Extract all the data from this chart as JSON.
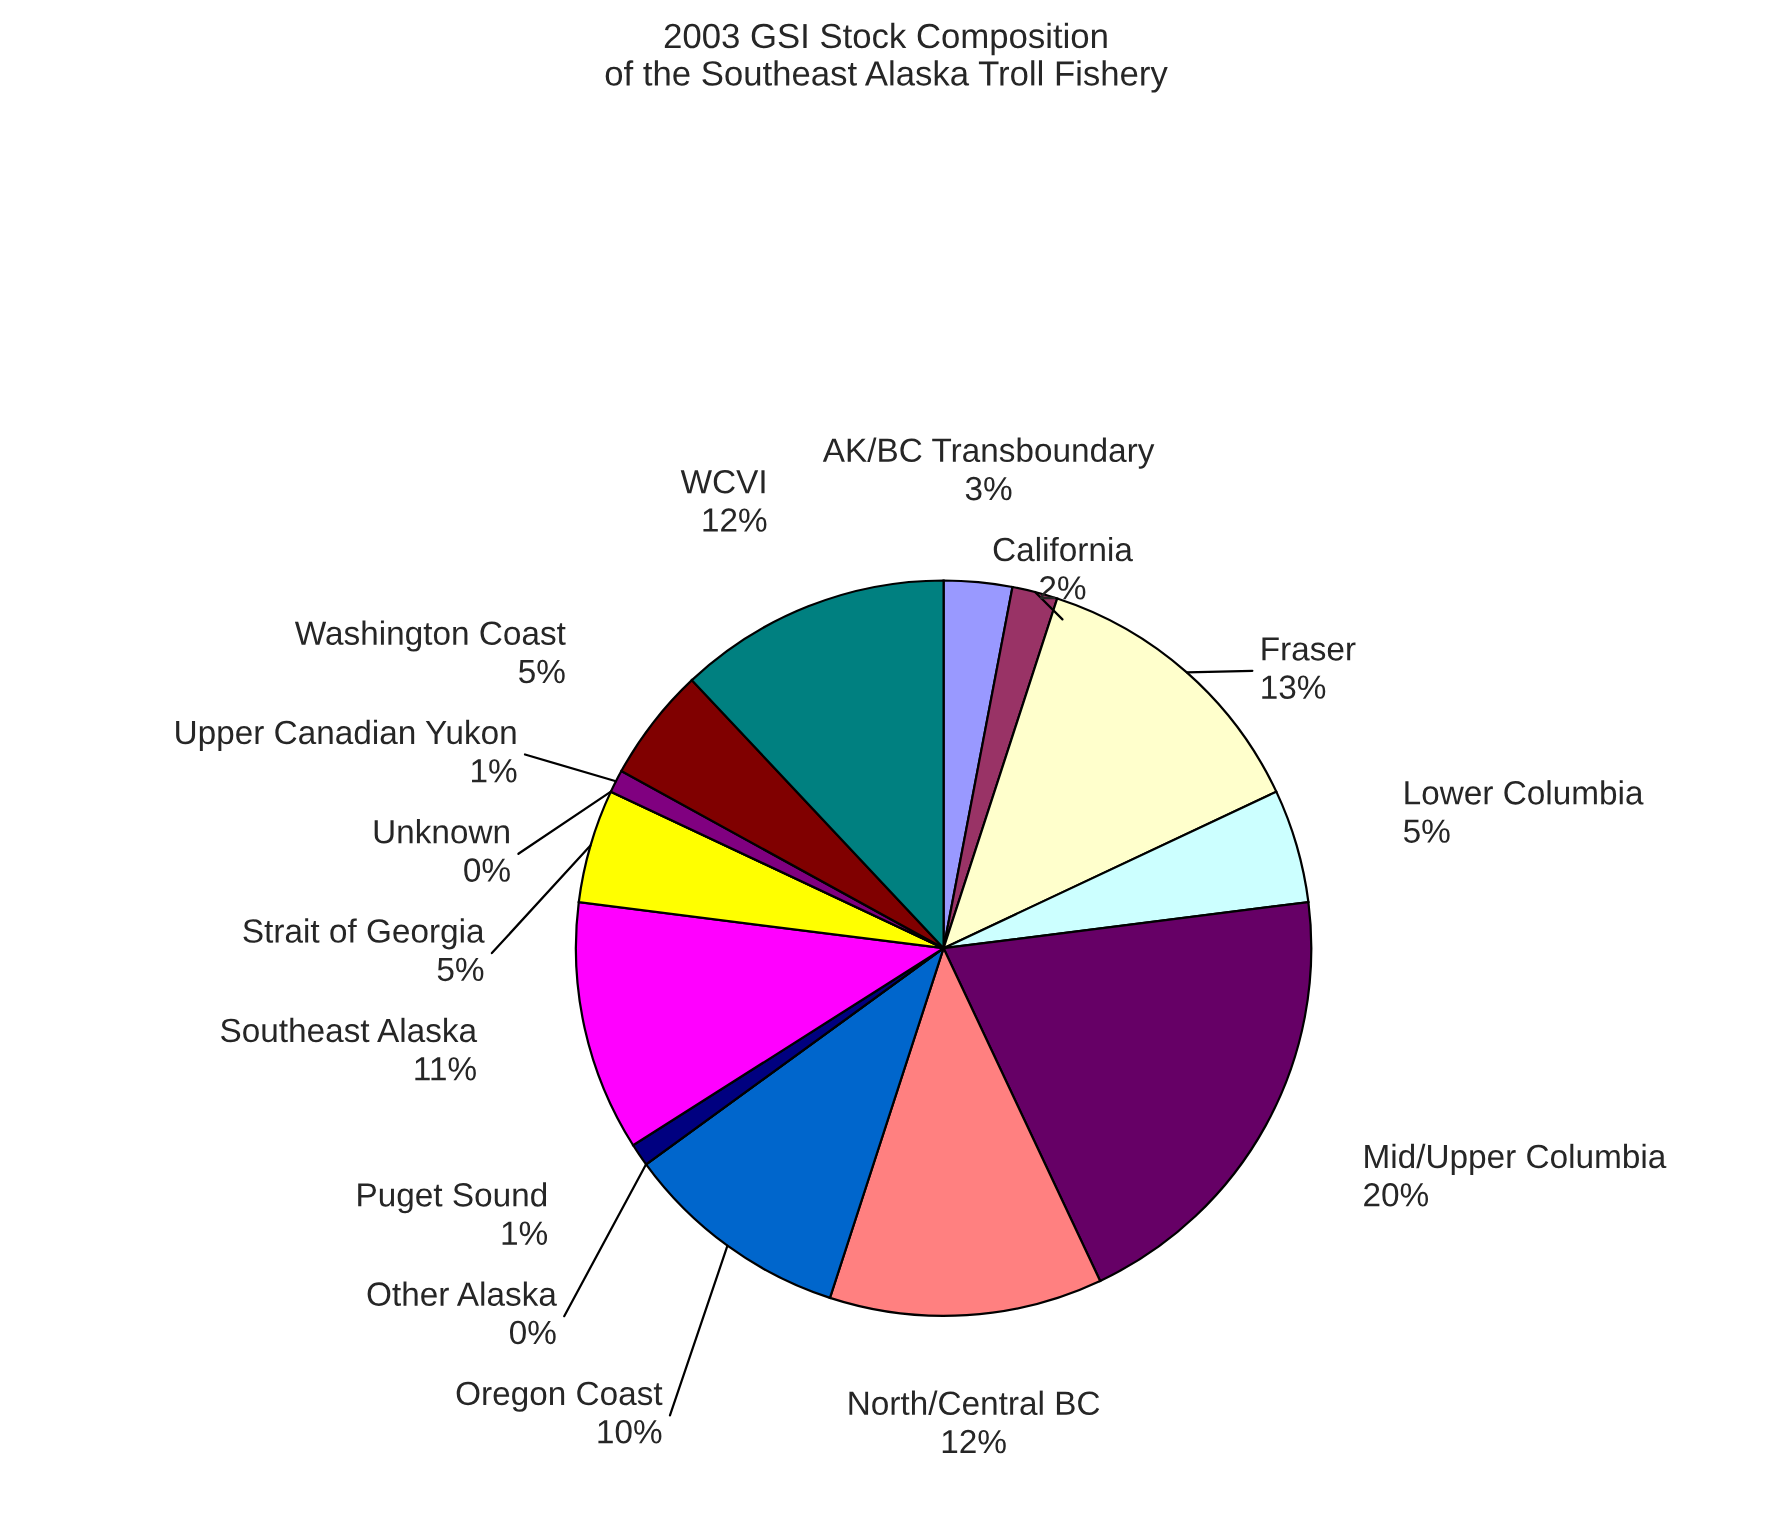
{
  "chart_data": {
    "type": "pie",
    "title": "2003 GSI Stock Composition\nof the Southeast Alaska Troll Fishery",
    "categories": [
      "AK/BC Transboundary",
      "California",
      "Fraser",
      "Lower Columbia",
      "Mid/Upper Columbia",
      "North/Central BC",
      "Oregon Coast",
      "Other Alaska",
      "Puget Sound",
      "Southeast Alaska",
      "Strait of Georgia",
      "Unknown",
      "Upper Canadian Yukon",
      "Washington Coast",
      "WCVI"
    ],
    "values": [
      3,
      2,
      13,
      5,
      20,
      12,
      10,
      0,
      1,
      11,
      5,
      0,
      1,
      5,
      12
    ],
    "colors": [
      "#9999ff",
      "#993366",
      "#ffffcc",
      "#ccffff",
      "#660066",
      "#ff8080",
      "#0066cc",
      "#ccccff",
      "#000080",
      "#ff00ff",
      "#ffff00",
      "#00ffff",
      "#800080",
      "#800000",
      "#008080"
    ],
    "value_labels": [
      "3%",
      "2%",
      "13%",
      "5%",
      "20%",
      "12%",
      "10%",
      "0%",
      "1%",
      "11%",
      "5%",
      "0%",
      "1%",
      "5%",
      "12%"
    ]
  }
}
